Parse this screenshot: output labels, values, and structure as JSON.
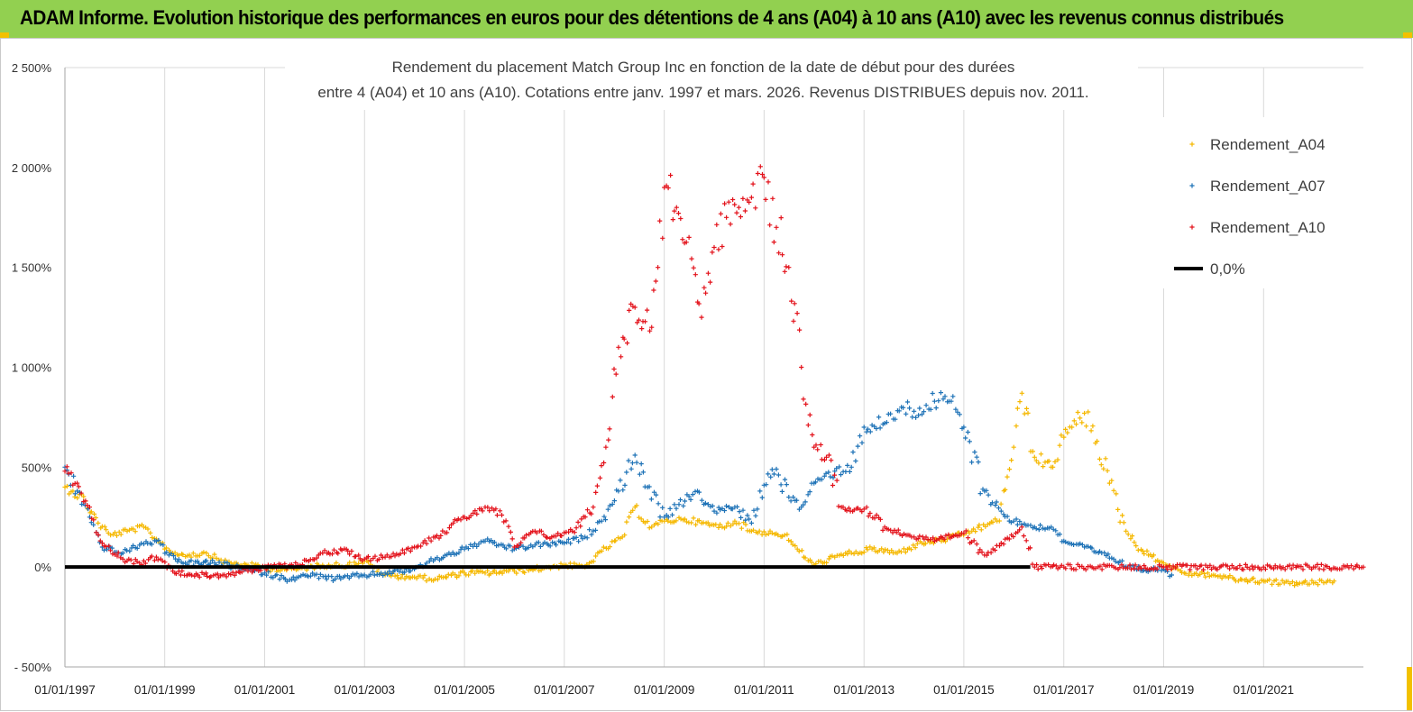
{
  "banner": {
    "title": "ADAM Informe. Evolution historique des performances en euros pour des détentions de 4 ans (A04) à 10 ans (A10) avec les revenus connus distribués"
  },
  "colors": {
    "banner_bg": "#92d050",
    "a04": "#f5b800",
    "a07": "#1f73b7",
    "a10": "#e3121b",
    "zero": "#000000",
    "grid": "#d9d9d9"
  },
  "chart_data": {
    "type": "scatter",
    "title_lines": [
      "Rendement du placement Match Group Inc en fonction de la date de début pour des durées",
      "entre 4 (A04) et 10 ans (A10). Cotations entre janv. 1997 et mars. 2026. Revenus DISTRIBUES depuis nov. 2011."
    ],
    "y_unit": "%",
    "ylim": [
      -500,
      2500
    ],
    "y_ticks": [
      -500,
      0,
      500,
      1000,
      1500,
      2000,
      2500
    ],
    "y_tick_labels": [
      "- 500%",
      "0%",
      "500%",
      "1 000%",
      "1 500%",
      "2 000%",
      "2 500%"
    ],
    "xlim": [
      "1997-01-01",
      "2023-01-01"
    ],
    "x_ticks": [
      "1997-01-01",
      "1999-01-01",
      "2001-01-01",
      "2003-01-01",
      "2005-01-01",
      "2007-01-01",
      "2009-01-01",
      "2011-01-01",
      "2013-01-01",
      "2015-01-01",
      "2017-01-01",
      "2019-01-01",
      "2021-01-01"
    ],
    "x_tick_labels": [
      "01/01/1997",
      "01/01/1999",
      "01/01/2001",
      "01/01/2003",
      "01/01/2005",
      "01/01/2007",
      "01/01/2009",
      "01/01/2011",
      "01/01/2013",
      "01/01/2015",
      "01/01/2017",
      "01/01/2019",
      "01/01/2021"
    ],
    "grid": "vertical",
    "legend_position": "top-right",
    "series": [
      {
        "name": "Rendement_A04",
        "color": "#f5b800",
        "points": [
          [
            "1997-01-01",
            400
          ],
          [
            "1997-03-01",
            380
          ],
          [
            "1997-06-01",
            330
          ],
          [
            "1997-09-01",
            220
          ],
          [
            "1997-12-01",
            160
          ],
          [
            "1998-04-01",
            180
          ],
          [
            "1998-08-01",
            200
          ],
          [
            "1998-11-01",
            140
          ],
          [
            "1999-03-01",
            70
          ],
          [
            "1999-07-01",
            60
          ],
          [
            "1999-11-01",
            70
          ],
          [
            "2000-04-01",
            20
          ],
          [
            "2000-09-01",
            10
          ],
          [
            "2001-03-01",
            -10
          ],
          [
            "2001-09-01",
            -10
          ],
          [
            "2002-03-01",
            10
          ],
          [
            "2002-09-01",
            10
          ],
          [
            "2003-01-01",
            30
          ],
          [
            "2003-06-01",
            -40
          ],
          [
            "2004-01-01",
            -50
          ],
          [
            "2004-06-01",
            -60
          ],
          [
            "2005-01-01",
            -30
          ],
          [
            "2005-06-01",
            -30
          ],
          [
            "2006-01-01",
            -20
          ],
          [
            "2006-06-01",
            -10
          ],
          [
            "2007-01-01",
            10
          ],
          [
            "2007-06-01",
            0
          ],
          [
            "2007-10-01",
            80
          ],
          [
            "2008-03-01",
            150
          ],
          [
            "2008-06-01",
            300
          ],
          [
            "2008-10-01",
            200
          ],
          [
            "2009-01-01",
            230
          ],
          [
            "2009-06-01",
            240
          ],
          [
            "2009-10-01",
            220
          ],
          [
            "2010-03-01",
            200
          ],
          [
            "2010-06-01",
            230
          ],
          [
            "2010-10-01",
            180
          ],
          [
            "2011-03-01",
            170
          ],
          [
            "2011-06-01",
            160
          ],
          [
            "2011-09-01",
            90
          ],
          [
            "2012-01-01",
            10
          ],
          [
            "2012-06-01",
            50
          ],
          [
            "2012-10-01",
            70
          ],
          [
            "2013-03-01",
            90
          ],
          [
            "2013-09-01",
            70
          ],
          [
            "2014-03-01",
            120
          ],
          [
            "2014-09-01",
            140
          ],
          [
            "2015-03-01",
            180
          ],
          [
            "2015-09-01",
            230
          ],
          [
            "2016-01-01",
            600
          ],
          [
            "2016-03-01",
            870
          ],
          [
            "2016-06-01",
            550
          ],
          [
            "2016-10-01",
            500
          ],
          [
            "2017-01-01",
            650
          ],
          [
            "2017-03-01",
            700
          ],
          [
            "2017-06-01",
            770
          ],
          [
            "2017-09-01",
            630
          ],
          [
            "2017-12-01",
            420
          ],
          [
            "2018-04-01",
            180
          ],
          [
            "2018-08-01",
            80
          ],
          [
            "2019-01-01",
            20
          ],
          [
            "2019-06-01",
            -30
          ],
          [
            "2020-01-01",
            -40
          ],
          [
            "2020-06-01",
            -60
          ],
          [
            "2021-01-01",
            -70
          ],
          [
            "2021-06-01",
            -80
          ],
          [
            "2022-01-01",
            -80
          ],
          [
            "2022-06-01",
            -70
          ]
        ]
      },
      {
        "name": "Rendement_A07",
        "color": "#1f73b7",
        "points": [
          [
            "1997-01-01",
            500
          ],
          [
            "1997-04-01",
            380
          ],
          [
            "1997-07-01",
            250
          ],
          [
            "1997-10-01",
            100
          ],
          [
            "1998-03-01",
            70
          ],
          [
            "1998-07-01",
            110
          ],
          [
            "1998-11-01",
            130
          ],
          [
            "1999-02-01",
            60
          ],
          [
            "1999-06-01",
            20
          ],
          [
            "2000-01-01",
            20
          ],
          [
            "2000-06-01",
            0
          ],
          [
            "2001-01-01",
            -30
          ],
          [
            "2001-06-01",
            -60
          ],
          [
            "2002-01-01",
            -40
          ],
          [
            "2002-06-01",
            -60
          ],
          [
            "2003-01-01",
            -40
          ],
          [
            "2003-06-01",
            -30
          ],
          [
            "2004-01-01",
            -10
          ],
          [
            "2004-06-01",
            40
          ],
          [
            "2005-01-01",
            90
          ],
          [
            "2005-06-01",
            130
          ],
          [
            "2006-01-01",
            90
          ],
          [
            "2006-06-01",
            110
          ],
          [
            "2007-01-01",
            120
          ],
          [
            "2007-06-01",
            150
          ],
          [
            "2007-10-01",
            230
          ],
          [
            "2008-02-01",
            380
          ],
          [
            "2008-06-01",
            560
          ],
          [
            "2008-09-01",
            400
          ],
          [
            "2009-01-01",
            250
          ],
          [
            "2009-06-01",
            330
          ],
          [
            "2009-09-01",
            380
          ],
          [
            "2010-01-01",
            280
          ],
          [
            "2010-06-01",
            300
          ],
          [
            "2010-10-01",
            220
          ],
          [
            "2011-01-01",
            410
          ],
          [
            "2011-04-01",
            490
          ],
          [
            "2011-07-01",
            350
          ],
          [
            "2011-10-01",
            300
          ],
          [
            "2012-01-01",
            420
          ],
          [
            "2012-06-01",
            480
          ],
          [
            "2012-10-01",
            500
          ],
          [
            "2013-01-01",
            700
          ],
          [
            "2013-06-01",
            720
          ],
          [
            "2013-10-01",
            800
          ],
          [
            "2014-01-01",
            780
          ],
          [
            "2014-06-01",
            830
          ],
          [
            "2014-10-01",
            830
          ],
          [
            "2015-01-01",
            700
          ],
          [
            "2015-06-01",
            380
          ],
          [
            "2015-10-01",
            280
          ],
          [
            "2016-01-01",
            230
          ],
          [
            "2016-06-01",
            200
          ],
          [
            "2016-10-01",
            200
          ],
          [
            "2017-01-01",
            130
          ],
          [
            "2017-06-01",
            100
          ],
          [
            "2018-01-01",
            40
          ],
          [
            "2018-06-01",
            -10
          ],
          [
            "2019-01-01",
            -10
          ],
          [
            "2019-03-01",
            -40
          ]
        ]
      },
      {
        "name": "Rendement_A10",
        "color": "#e3121b",
        "points": [
          [
            "1997-01-01",
            480
          ],
          [
            "1997-04-01",
            420
          ],
          [
            "1997-07-01",
            300
          ],
          [
            "1997-10-01",
            120
          ],
          [
            "1998-03-01",
            40
          ],
          [
            "1998-07-01",
            20
          ],
          [
            "1998-11-01",
            50
          ],
          [
            "1999-03-01",
            -20
          ],
          [
            "1999-09-01",
            -40
          ],
          [
            "2000-03-01",
            -40
          ],
          [
            "2000-09-01",
            -20
          ],
          [
            "2001-03-01",
            0
          ],
          [
            "2001-09-01",
            10
          ],
          [
            "2002-03-01",
            70
          ],
          [
            "2002-09-01",
            80
          ],
          [
            "2003-01-01",
            40
          ],
          [
            "2003-06-01",
            50
          ],
          [
            "2004-01-01",
            100
          ],
          [
            "2004-06-01",
            150
          ],
          [
            "2005-01-01",
            250
          ],
          [
            "2005-06-01",
            300
          ],
          [
            "2005-10-01",
            260
          ],
          [
            "2006-01-01",
            100
          ],
          [
            "2006-06-01",
            180
          ],
          [
            "2006-10-01",
            150
          ],
          [
            "2007-03-01",
            180
          ],
          [
            "2007-08-01",
            300
          ],
          [
            "2007-11-01",
            600
          ],
          [
            "2008-02-01",
            1100
          ],
          [
            "2008-06-01",
            1300
          ],
          [
            "2008-10-01",
            1200
          ],
          [
            "2009-01-01",
            1900
          ],
          [
            "2009-04-01",
            1800
          ],
          [
            "2009-07-01",
            1650
          ],
          [
            "2009-10-01",
            1250
          ],
          [
            "2010-01-01",
            1600
          ],
          [
            "2010-04-01",
            1750
          ],
          [
            "2010-07-01",
            1800
          ],
          [
            "2010-10-01",
            1850
          ],
          [
            "2011-01-01",
            1950
          ],
          [
            "2011-04-01",
            1700
          ],
          [
            "2011-07-01",
            1500
          ],
          [
            "2011-10-01",
            1000
          ],
          [
            "2012-01-01",
            600
          ],
          [
            "2012-04-01",
            550
          ],
          [
            "2012-08-01",
            300
          ],
          [
            "2013-01-01",
            290
          ],
          [
            "2013-06-01",
            200
          ],
          [
            "2014-01-01",
            150
          ],
          [
            "2014-06-01",
            130
          ],
          [
            "2015-01-01",
            170
          ],
          [
            "2015-06-01",
            60
          ],
          [
            "2015-10-01",
            120
          ],
          [
            "2016-03-01",
            200
          ],
          [
            "2016-06-01",
            0
          ],
          [
            "2017-01-01",
            0
          ],
          [
            "2018-01-01",
            0
          ],
          [
            "2019-01-01",
            0
          ],
          [
            "2020-01-01",
            0
          ],
          [
            "2021-01-01",
            0
          ],
          [
            "2022-01-01",
            0
          ],
          [
            "2023-01-01",
            0
          ]
        ]
      },
      {
        "name": "0,0%",
        "color": "#000000",
        "line": true,
        "points": [
          [
            "1997-01-01",
            0
          ],
          [
            "2016-05-01",
            0
          ]
        ]
      }
    ]
  }
}
